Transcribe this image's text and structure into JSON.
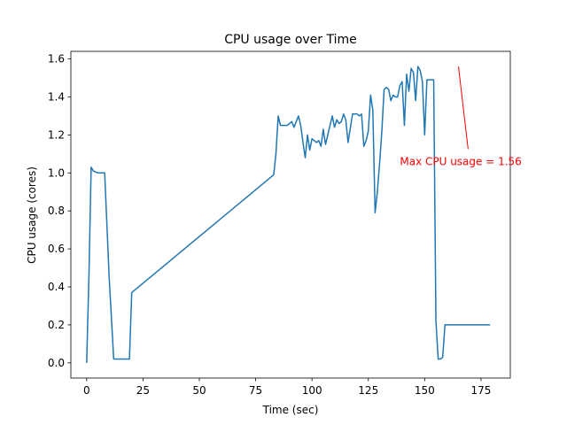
{
  "chart_data": {
    "type": "line",
    "title": "CPU usage over Time",
    "xlabel": "Time (sec)",
    "ylabel": "CPU usage (cores)",
    "xlim": [
      -7,
      188
    ],
    "ylim": [
      -0.08,
      1.64
    ],
    "x_ticks": [
      0,
      25,
      50,
      75,
      100,
      125,
      150,
      175
    ],
    "y_ticks": [
      0.0,
      0.2,
      0.4,
      0.6,
      0.8,
      1.0,
      1.2,
      1.4,
      1.6
    ],
    "x_tick_labels": [
      "0",
      "25",
      "50",
      "75",
      "100",
      "125",
      "150",
      "175"
    ],
    "y_tick_labels": [
      "0.0",
      "0.2",
      "0.4",
      "0.6",
      "0.8",
      "1.0",
      "1.2",
      "1.4",
      "1.6"
    ],
    "grid": false,
    "series": [
      {
        "color": "#1f77b4",
        "x": [
          0,
          1,
          2,
          3,
          5,
          8,
          10,
          12,
          15,
          18,
          19,
          20,
          83,
          84,
          85,
          86,
          87,
          89,
          91,
          92,
          94,
          95,
          96,
          97,
          98,
          99,
          100,
          101,
          102,
          103,
          104,
          105,
          106,
          107,
          108,
          109,
          110,
          111,
          112,
          113,
          114,
          115,
          116,
          118,
          120,
          121,
          122,
          123,
          124,
          125,
          126,
          127,
          128,
          129,
          130,
          131,
          132,
          133,
          134,
          135,
          136,
          137,
          138,
          139,
          140,
          141,
          142,
          143,
          144,
          145,
          146,
          147,
          148,
          149,
          150,
          151,
          152,
          153,
          154,
          155,
          156,
          157,
          158,
          159,
          160,
          161,
          162,
          163,
          164,
          165,
          166,
          167,
          168,
          169,
          170,
          171,
          172,
          173,
          174,
          175,
          176,
          177,
          178,
          179
        ],
        "y": [
          0.0,
          0.45,
          1.03,
          1.01,
          1.0,
          1.0,
          0.45,
          0.02,
          0.02,
          0.02,
          0.02,
          0.37,
          0.99,
          1.1,
          1.3,
          1.25,
          1.25,
          1.25,
          1.27,
          1.24,
          1.3,
          1.25,
          1.16,
          1.08,
          1.2,
          1.12,
          1.18,
          1.17,
          1.16,
          1.17,
          1.14,
          1.23,
          1.15,
          1.2,
          1.25,
          1.3,
          1.24,
          1.28,
          1.26,
          1.27,
          1.31,
          1.28,
          1.16,
          1.31,
          1.31,
          1.3,
          1.31,
          1.14,
          1.17,
          1.22,
          1.41,
          1.33,
          0.79,
          0.9,
          1.05,
          1.22,
          1.44,
          1.45,
          1.44,
          1.38,
          1.41,
          1.4,
          1.4,
          1.46,
          1.48,
          1.25,
          1.52,
          1.43,
          1.55,
          1.53,
          1.38,
          1.56,
          1.54,
          1.48,
          1.2,
          1.49,
          1.49,
          1.49,
          1.49,
          0.22,
          0.02,
          0.02,
          0.03,
          0.2,
          0.2,
          0.2,
          0.2,
          0.2,
          0.2,
          0.2,
          0.2,
          0.2,
          0.2,
          0.2,
          0.2,
          0.2,
          0.2,
          0.2,
          0.2,
          0.2,
          0.2,
          0.2,
          0.2,
          0.2
        ]
      }
    ],
    "annotation": {
      "text": "Max CPU usage = 1.56",
      "xy": [
        165,
        1.56
      ],
      "xytext": [
        139,
        1.06
      ],
      "color": "#ff0000"
    }
  }
}
